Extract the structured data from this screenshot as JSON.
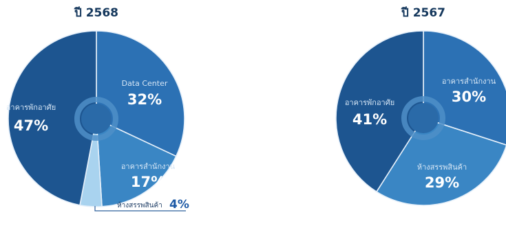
{
  "chart_data": [
    {
      "type": "pie",
      "title": "ปี 2568",
      "slices": [
        {
          "label": "Data Center",
          "value": 32,
          "display": "32%",
          "color": "#2c71b4"
        },
        {
          "label": "อาคารสำนักงาน",
          "value": 17,
          "display": "17%",
          "color": "#3a86c4"
        },
        {
          "label": "ห้างสรรพสินค้า",
          "value": 4,
          "display": "4%",
          "color": "#a9d3ef"
        },
        {
          "label": "อาคารพักอาศัย",
          "value": 47,
          "display": "47%",
          "color": "#1d5590"
        }
      ]
    },
    {
      "type": "pie",
      "title": "ปี 2567",
      "slices": [
        {
          "label": "อาคารสำนักงาน",
          "value": 30,
          "display": "30%",
          "color": "#2c71b4"
        },
        {
          "label": "ห้างสรรพสินค้า",
          "value": 29,
          "display": "29%",
          "color": "#3a86c4"
        },
        {
          "label": "อาคารพักอาศัย",
          "value": 41,
          "display": "41%",
          "color": "#1d5590"
        }
      ]
    }
  ],
  "colors": {
    "title": "#14375c",
    "separator": "#e6f0fa",
    "hole": "#2a6aa8",
    "hole_ring": "#4f8fc8",
    "callout_text": "#1d3c64",
    "callout_value": "#1e5aa6",
    "callout_line": "#2c5f9b"
  }
}
